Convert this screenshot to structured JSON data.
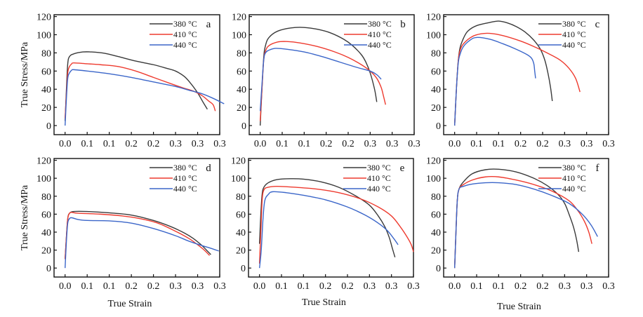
{
  "chart_data": [
    {
      "type": "line",
      "panel": "a",
      "xlabel": "",
      "ylabel": "True Stress/MPa",
      "xlim": [
        -0.025,
        0.35
      ],
      "ylim": [
        -10,
        122
      ],
      "xticks": [
        0.0,
        0.05,
        0.1,
        0.15,
        0.2,
        0.25,
        0.3,
        0.35
      ],
      "xtick_labels": [
        "0.0",
        "0.1",
        "0.1",
        "0.2",
        "0.2",
        "0.3",
        "0.3",
        "0.3"
      ],
      "yticks": [
        0,
        20,
        40,
        60,
        80,
        100,
        120
      ],
      "ytick_labels": [
        "0",
        "20",
        "40",
        "60",
        "80",
        "100",
        "120"
      ],
      "legend": "top-right",
      "series": [
        {
          "name": "380 °C",
          "color": "#3a3a3a",
          "x": [
            0.0,
            0.003,
            0.006,
            0.01,
            0.02,
            0.04,
            0.06,
            0.09,
            0.12,
            0.16,
            0.2,
            0.23,
            0.25,
            0.27,
            0.285,
            0.3,
            0.312,
            0.322
          ],
          "y": [
            5,
            40,
            68,
            76,
            79,
            81,
            81,
            79.5,
            76,
            71,
            67,
            63,
            60,
            54,
            46,
            36,
            26,
            18
          ]
        },
        {
          "name": "410 °C",
          "color": "#ee3b2f",
          "x": [
            0.0,
            0.003,
            0.006,
            0.01,
            0.015,
            0.02,
            0.05,
            0.08,
            0.12,
            0.16,
            0.2,
            0.24,
            0.27,
            0.29,
            0.31,
            0.325,
            0.335,
            0.34
          ],
          "y": [
            8,
            35,
            58,
            65,
            68,
            69,
            68,
            67,
            65,
            60,
            53,
            46,
            41,
            38,
            33,
            27,
            23,
            16
          ]
        },
        {
          "name": "440 °C",
          "color": "#3b66c9",
          "x": [
            0.0,
            0.003,
            0.006,
            0.01,
            0.015,
            0.02,
            0.05,
            0.1,
            0.15,
            0.2,
            0.25,
            0.28,
            0.31,
            0.335,
            0.36
          ],
          "y": [
            0,
            30,
            52,
            58,
            61,
            61.5,
            60,
            57,
            53,
            48,
            43,
            39,
            35,
            30,
            24
          ]
        }
      ]
    },
    {
      "type": "line",
      "panel": "b",
      "xlabel": "",
      "ylabel": "",
      "xlim": [
        -0.025,
        0.35
      ],
      "ylim": [
        -10,
        122
      ],
      "xticks": [
        0.0,
        0.05,
        0.1,
        0.15,
        0.2,
        0.25,
        0.3,
        0.35
      ],
      "xtick_labels": [
        "0.0",
        "0.1",
        "0.1",
        "0.2",
        "0.2",
        "0.3",
        "0.3",
        "0.3"
      ],
      "yticks": [
        0,
        20,
        40,
        60,
        80,
        100,
        120
      ],
      "ytick_labels": [
        "0",
        "20",
        "40",
        "60",
        "80",
        "100",
        "120"
      ],
      "legend": "top-right",
      "series": [
        {
          "name": "380 °C",
          "color": "#3a3a3a",
          "x": [
            0.0,
            0.004,
            0.008,
            0.012,
            0.02,
            0.04,
            0.07,
            0.1,
            0.13,
            0.16,
            0.19,
            0.21,
            0.23,
            0.24,
            0.25,
            0.26,
            0.265
          ],
          "y": [
            0,
            40,
            75,
            88,
            97,
            104,
            107.5,
            108,
            106,
            102,
            95,
            88,
            78,
            70,
            58,
            40,
            26
          ]
        },
        {
          "name": "410 °C",
          "color": "#ee3b2f",
          "x": [
            0.0,
            0.004,
            0.008,
            0.012,
            0.02,
            0.04,
            0.06,
            0.09,
            0.13,
            0.17,
            0.2,
            0.23,
            0.25,
            0.265,
            0.275,
            0.28,
            0.285
          ],
          "y": [
            5,
            40,
            72,
            82,
            88,
            92,
            92.5,
            91,
            87,
            81,
            75,
            67,
            60,
            52,
            42,
            33,
            23
          ]
        },
        {
          "name": "440 °C",
          "color": "#3b66c9",
          "x": [
            0.0,
            0.004,
            0.008,
            0.012,
            0.02,
            0.035,
            0.06,
            0.1,
            0.14,
            0.18,
            0.22,
            0.25,
            0.265,
            0.275
          ],
          "y": [
            16,
            45,
            72,
            80,
            83,
            85,
            84,
            81,
            76,
            70,
            64,
            60,
            56,
            51
          ]
        }
      ]
    },
    {
      "type": "line",
      "panel": "c",
      "xlabel": "",
      "ylabel": "",
      "xlim": [
        -0.025,
        0.35
      ],
      "ylim": [
        -10,
        122
      ],
      "xticks": [
        0.0,
        0.05,
        0.1,
        0.15,
        0.2,
        0.25,
        0.3,
        0.35
      ],
      "xtick_labels": [
        "0.0",
        "0.1",
        "0.1",
        "0.2",
        "0.2",
        "0.3",
        "0.3",
        "0.3"
      ],
      "yticks": [
        0,
        20,
        40,
        60,
        80,
        100,
        120
      ],
      "ytick_labels": [
        "0",
        "20",
        "40",
        "60",
        "80",
        "100",
        "120"
      ],
      "legend": "top-right",
      "series": [
        {
          "name": "380 °C",
          "color": "#3a3a3a",
          "x": [
            0.0,
            0.004,
            0.008,
            0.012,
            0.02,
            0.03,
            0.05,
            0.08,
            0.1,
            0.12,
            0.14,
            0.16,
            0.18,
            0.195,
            0.205,
            0.212,
            0.218,
            0.222
          ],
          "y": [
            0,
            40,
            70,
            85,
            96,
            104,
            110,
            113.5,
            115,
            113,
            109,
            103,
            94,
            84,
            72,
            58,
            42,
            27
          ]
        },
        {
          "name": "410 °C",
          "color": "#ee3b2f",
          "x": [
            0.0,
            0.004,
            0.008,
            0.012,
            0.02,
            0.04,
            0.06,
            0.08,
            0.11,
            0.15,
            0.18,
            0.21,
            0.24,
            0.26,
            0.275,
            0.285
          ],
          "y": [
            0,
            40,
            70,
            82,
            90,
            98,
            101,
            101.5,
            99,
            93,
            87,
            80,
            72,
            63,
            52,
            37
          ]
        },
        {
          "name": "440 °C",
          "color": "#3b66c9",
          "x": [
            0.0,
            0.004,
            0.008,
            0.012,
            0.02,
            0.035,
            0.05,
            0.08,
            0.11,
            0.14,
            0.165,
            0.175,
            0.18,
            0.182,
            0.184
          ],
          "y": [
            0,
            40,
            68,
            78,
            87,
            94,
            97,
            95,
            90,
            84,
            78,
            74,
            68,
            60,
            52
          ]
        }
      ]
    },
    {
      "type": "line",
      "panel": "d",
      "xlabel": "True Strain",
      "ylabel": "True Stress/MPa",
      "xlim": [
        -0.025,
        0.35
      ],
      "ylim": [
        -10,
        122
      ],
      "xticks": [
        0.0,
        0.05,
        0.1,
        0.15,
        0.2,
        0.25,
        0.3,
        0.35
      ],
      "xtick_labels": [
        "0.0",
        "0.1",
        "0.1",
        "0.2",
        "0.2",
        "0.3",
        "0.3",
        "0.3"
      ],
      "yticks": [
        0,
        20,
        40,
        60,
        80,
        100,
        120
      ],
      "ytick_labels": [
        "0",
        "20",
        "40",
        "60",
        "80",
        "100",
        "120"
      ],
      "legend": "top-right",
      "series": [
        {
          "name": "380 °C",
          "color": "#3a3a3a",
          "x": [
            0.0,
            0.003,
            0.006,
            0.01,
            0.02,
            0.05,
            0.1,
            0.15,
            0.2,
            0.24,
            0.27,
            0.29,
            0.31,
            0.32,
            0.33
          ],
          "y": [
            10,
            35,
            55,
            61,
            63,
            63,
            61.5,
            59,
            53,
            46,
            39,
            33,
            25,
            20,
            15
          ]
        },
        {
          "name": "410 °C",
          "color": "#ee3b2f",
          "x": [
            0.0,
            0.003,
            0.006,
            0.01,
            0.015,
            0.03,
            0.08,
            0.13,
            0.17,
            0.21,
            0.25,
            0.28,
            0.3,
            0.315,
            0.327
          ],
          "y": [
            10,
            35,
            55,
            61,
            62,
            61,
            60,
            58,
            55,
            50,
            41,
            33,
            26,
            20,
            14
          ]
        },
        {
          "name": "440 °C",
          "color": "#3b66c9",
          "x": [
            0.0,
            0.003,
            0.006,
            0.01,
            0.015,
            0.03,
            0.05,
            0.1,
            0.15,
            0.2,
            0.25,
            0.28,
            0.31,
            0.33,
            0.348
          ],
          "y": [
            0,
            30,
            50,
            55,
            56,
            54,
            53,
            52.5,
            50,
            44,
            36,
            30,
            25,
            22,
            19
          ]
        }
      ]
    },
    {
      "type": "line",
      "panel": "e",
      "xlabel": "True Strain",
      "ylabel": "",
      "xlim": [
        -0.025,
        0.35
      ],
      "ylim": [
        -10,
        122
      ],
      "xticks": [
        0.0,
        0.05,
        0.1,
        0.15,
        0.2,
        0.25,
        0.3,
        0.35
      ],
      "xtick_labels": [
        "0.0",
        "0.1",
        "0.1",
        "0.2",
        "0.2",
        "0.3",
        "0.3",
        "0.3"
      ],
      "yticks": [
        0,
        20,
        40,
        60,
        80,
        100,
        120
      ],
      "ytick_labels": [
        "0",
        "20",
        "40",
        "60",
        "80",
        "100",
        "120"
      ],
      "legend": "top-right",
      "series": [
        {
          "name": "380 °C",
          "color": "#3a3a3a",
          "x": [
            0.0,
            0.003,
            0.006,
            0.01,
            0.02,
            0.04,
            0.07,
            0.1,
            0.14,
            0.18,
            0.22,
            0.25,
            0.27,
            0.285,
            0.295,
            0.302,
            0.308
          ],
          "y": [
            27,
            60,
            82,
            90,
            95,
            98.5,
            99.5,
            99,
            96,
            90,
            80,
            70,
            58,
            46,
            34,
            22,
            12
          ]
        },
        {
          "name": "410 °C",
          "color": "#ee3b2f",
          "x": [
            0.0,
            0.003,
            0.006,
            0.01,
            0.02,
            0.04,
            0.08,
            0.13,
            0.18,
            0.23,
            0.27,
            0.3,
            0.32,
            0.335,
            0.345,
            0.35
          ],
          "y": [
            5,
            40,
            75,
            87,
            90,
            91,
            90,
            88,
            84,
            77,
            68,
            58,
            46,
            35,
            26,
            18
          ]
        },
        {
          "name": "440 °C",
          "color": "#3b66c9",
          "x": [
            0.0,
            0.004,
            0.008,
            0.012,
            0.02,
            0.03,
            0.06,
            0.1,
            0.15,
            0.2,
            0.24,
            0.27,
            0.29,
            0.305,
            0.315
          ],
          "y": [
            0,
            20,
            55,
            75,
            82,
            85,
            84,
            81,
            76,
            68,
            59,
            50,
            42,
            33,
            26
          ]
        }
      ]
    },
    {
      "type": "line",
      "panel": "f",
      "xlabel": "True Strain",
      "ylabel": "",
      "xlim": [
        -0.025,
        0.35
      ],
      "ylim": [
        -10,
        122
      ],
      "xticks": [
        0.0,
        0.05,
        0.1,
        0.15,
        0.2,
        0.25,
        0.3,
        0.35
      ],
      "xtick_labels": [
        "0.0",
        "0.1",
        "0.1",
        "0.2",
        "0.2",
        "0.3",
        "0.3",
        "0.3"
      ],
      "yticks": [
        0,
        20,
        40,
        60,
        80,
        100,
        120
      ],
      "ytick_labels": [
        "0",
        "20",
        "40",
        "60",
        "80",
        "100",
        "120"
      ],
      "legend": "top-right",
      "series": [
        {
          "name": "380 °C",
          "color": "#3a3a3a",
          "x": [
            0.0,
            0.003,
            0.006,
            0.01,
            0.02,
            0.04,
            0.07,
            0.1,
            0.14,
            0.18,
            0.21,
            0.235,
            0.25,
            0.26,
            0.27,
            0.277,
            0.282
          ],
          "y": [
            0,
            40,
            75,
            88,
            96,
            105,
            109.5,
            110,
            107,
            100,
            92,
            82,
            72,
            60,
            46,
            32,
            18
          ]
        },
        {
          "name": "410 °C",
          "color": "#ee3b2f",
          "x": [
            0.0,
            0.003,
            0.006,
            0.01,
            0.02,
            0.04,
            0.07,
            0.1,
            0.14,
            0.18,
            0.22,
            0.26,
            0.28,
            0.295,
            0.305,
            0.312
          ],
          "y": [
            0,
            40,
            75,
            88,
            93,
            98,
            101.5,
            101.5,
            98,
            93,
            86,
            75,
            64,
            52,
            40,
            27
          ]
        },
        {
          "name": "440 °C",
          "color": "#3b66c9",
          "x": [
            0.0,
            0.003,
            0.006,
            0.01,
            0.02,
            0.04,
            0.07,
            0.1,
            0.14,
            0.18,
            0.22,
            0.26,
            0.29,
            0.31,
            0.325
          ],
          "y": [
            0,
            40,
            75,
            88,
            91,
            93.5,
            95,
            95,
            93,
            88,
            81,
            72,
            60,
            48,
            35
          ]
        }
      ]
    }
  ]
}
